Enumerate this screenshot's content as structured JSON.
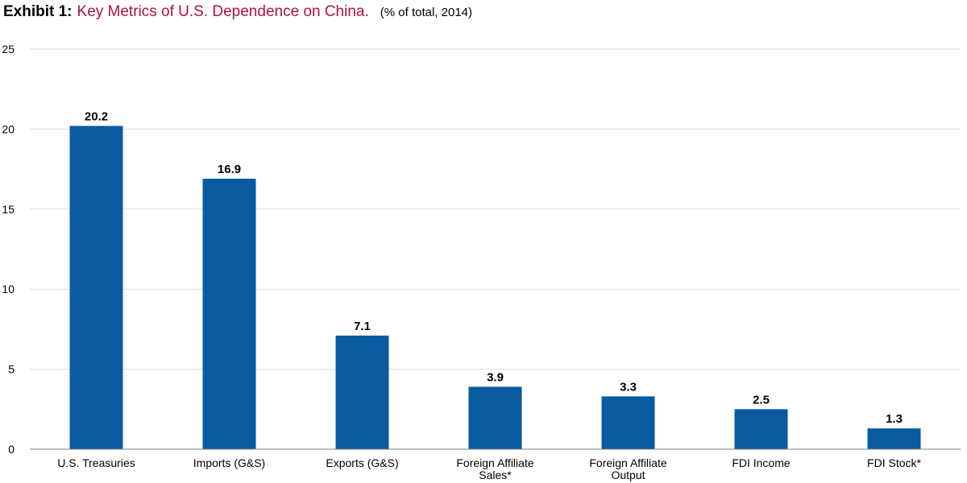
{
  "header": {
    "prefix": "Exhibit 1:",
    "title": "Key Metrics of U.S. Dependence on China.",
    "subtitle": "(% of total, 2014)"
  },
  "colors": {
    "bar": "#0a5aa0",
    "title": "#b0123c",
    "grid": "#d9d9d9"
  },
  "chart_data": {
    "type": "bar",
    "title": "Key Metrics of U.S. Dependence on China.",
    "categories": [
      [
        "U.S. Treasuries"
      ],
      [
        "Imports (G&S)"
      ],
      [
        "Exports (G&S)"
      ],
      [
        "Foreign Affiliate",
        "Sales*"
      ],
      [
        "Foreign Affiliate",
        "Output"
      ],
      [
        "FDI Income"
      ],
      [
        "FDI Stock*"
      ]
    ],
    "values": [
      20.2,
      16.9,
      7.1,
      3.9,
      3.3,
      2.5,
      1.3
    ],
    "value_labels": [
      "20.2",
      "16.9",
      "7.1",
      "3.9",
      "3.3",
      "2.5",
      "1.3"
    ],
    "ylim": [
      0,
      25
    ],
    "yticks": [
      "0",
      "5",
      "10",
      "15",
      "20",
      "25"
    ],
    "grid": true,
    "legend": false
  }
}
